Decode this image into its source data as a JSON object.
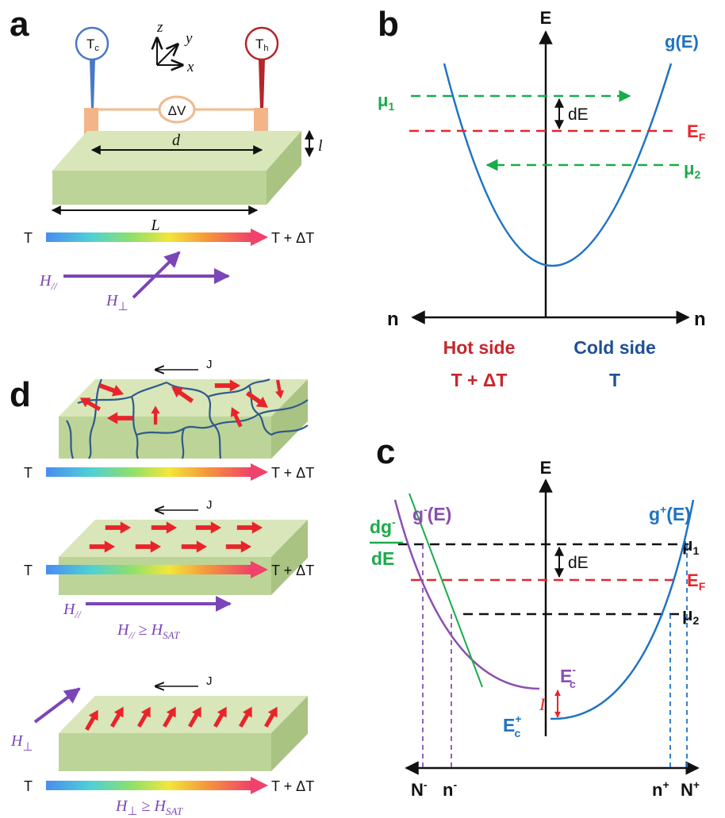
{
  "colors": {
    "slab_top": "#d5e3b5",
    "slab_side": "#b9d093",
    "blue_curve": "#1f73c2",
    "purple_curve": "#8a4fb0",
    "green": "#1aab4a",
    "red": "#e8242a",
    "dark_blue": "#1f4f96",
    "thermo_cold": "#4a78c8",
    "thermo_hot": "#b3262a",
    "wire": "#f0b98c",
    "arrow_purple": "#7b45b8",
    "domain_wall": "#2f5a8a"
  },
  "panels": {
    "a": {
      "letter": "a",
      "tc": {
        "main": "T",
        "sub": "c"
      },
      "th": {
        "main": "T",
        "sub": "h"
      },
      "axis_z": "z",
      "axis_y": "y",
      "axis_x": "x",
      "delta_v": "ΔV",
      "d": "d",
      "l": "l",
      "L": "L",
      "t_left": "T",
      "t_right": "T + ΔT",
      "h_par": {
        "main": "H",
        "sub": "//"
      },
      "h_perp": {
        "main": "H",
        "sub": "⊥"
      }
    },
    "b": {
      "letter": "b",
      "axis_E": "E",
      "g": "g(E)",
      "mu1": {
        "main": "μ",
        "sub": "1"
      },
      "mu2": {
        "main": "μ",
        "sub": "2"
      },
      "dE": "dE",
      "EF": {
        "main": "E",
        "sub": "F"
      },
      "n_left": "n",
      "n_right": "n",
      "hot_side": "Hot side",
      "hot_temp": "T + ΔT",
      "cold_side": "Cold side",
      "cold_temp": "T"
    },
    "c": {
      "letter": "c",
      "axis_E": "E",
      "g_minus": {
        "main": "g",
        "sup": "-",
        "rest": "(E)"
      },
      "g_plus": {
        "main": "g",
        "sup": "+",
        "rest": "(E)"
      },
      "dg_num": {
        "main": "dg",
        "sup": "-"
      },
      "dg_den": "dE",
      "mu1": {
        "main": "μ",
        "sub": "1"
      },
      "mu2": {
        "main": "μ",
        "sub": "2"
      },
      "dE": "dE",
      "EF": {
        "main": "E",
        "sub": "F"
      },
      "Ec_minus": {
        "main": "E",
        "sup": "-",
        "sub": "c"
      },
      "Ec_plus": {
        "main": "E",
        "sup": "+",
        "sub": "c"
      },
      "I": "I",
      "N_minus": {
        "main": "N",
        "sup": "-"
      },
      "n_minus": {
        "main": "n",
        "sup": "-"
      },
      "n_plus": {
        "main": "n",
        "sup": "+"
      },
      "N_plus": {
        "main": "N",
        "sup": "+"
      }
    },
    "d": {
      "letter": "d",
      "J": "J",
      "t_left": "T",
      "t_right": "T + ΔT",
      "h_par": {
        "main": "H",
        "sub": "//"
      },
      "h_par_cond": {
        "h": "H",
        "h_sub": "//",
        "rel": " ≥ ",
        "hs": "H",
        "hs_sub": "SAT"
      },
      "h_perp": {
        "main": "H",
        "sub": "⊥"
      },
      "h_perp_cond": {
        "h": "H",
        "h_sub": "⊥",
        "rel": " ≥ ",
        "hs": "H",
        "hs_sub": "SAT"
      }
    }
  }
}
